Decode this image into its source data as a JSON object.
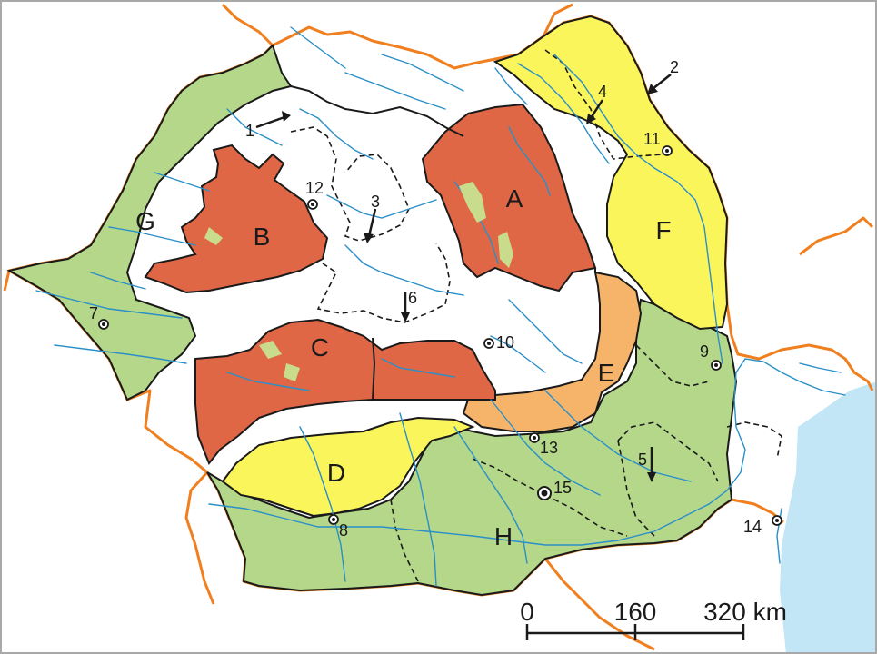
{
  "colors": {
    "border": "#f07f1f",
    "red_region": "#e06746",
    "yellow_region": "#fbf55c",
    "green_region": "#b4d78a",
    "orange_region": "#f6b46b",
    "river": "#2a8fc7",
    "sea": "#c2e6f6",
    "outline": "#1a1a1a"
  },
  "regions": [
    {
      "id": "A",
      "label": "A",
      "fill": "red"
    },
    {
      "id": "B",
      "label": "B",
      "fill": "red"
    },
    {
      "id": "C",
      "label": "C",
      "fill": "red"
    },
    {
      "id": "D",
      "label": "D",
      "fill": "yellow"
    },
    {
      "id": "E",
      "label": "E",
      "fill": "orange"
    },
    {
      "id": "F",
      "label": "F",
      "fill": "yellow"
    },
    {
      "id": "G",
      "label": "G",
      "fill": "green"
    },
    {
      "id": "H",
      "label": "H",
      "fill": "green"
    }
  ],
  "markers": [
    {
      "label": "1",
      "kind": "arrow"
    },
    {
      "label": "2",
      "kind": "arrow"
    },
    {
      "label": "3",
      "kind": "arrow"
    },
    {
      "label": "4",
      "kind": "arrow"
    },
    {
      "label": "5",
      "kind": "arrow"
    },
    {
      "label": "6",
      "kind": "arrow"
    },
    {
      "label": "7",
      "kind": "city"
    },
    {
      "label": "8",
      "kind": "city"
    },
    {
      "label": "9",
      "kind": "city"
    },
    {
      "label": "10",
      "kind": "city"
    },
    {
      "label": "11",
      "kind": "city"
    },
    {
      "label": "12",
      "kind": "city"
    },
    {
      "label": "13",
      "kind": "city"
    },
    {
      "label": "14",
      "kind": "city"
    },
    {
      "label": "15",
      "kind": "city"
    }
  ],
  "scale_bar": {
    "ticks": [
      "0",
      "160",
      "320 km"
    ]
  }
}
